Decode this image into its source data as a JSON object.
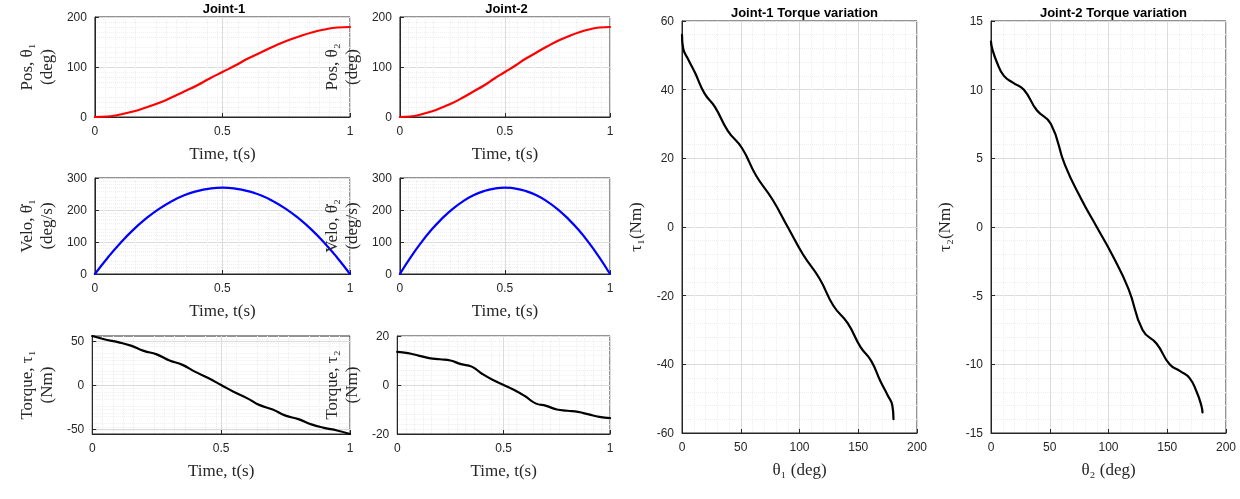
{
  "chart_data": [
    {
      "type": "line",
      "title": "Joint-1",
      "xlabel": "Time, t(s)",
      "ylabel": "Pos, θ₁\n(deg)",
      "x": [
        0,
        0.05,
        0.1,
        0.15,
        0.2,
        0.25,
        0.3,
        0.35,
        0.4,
        0.45,
        0.5,
        0.55,
        0.6,
        0.65,
        0.7,
        0.75,
        0.8,
        0.85,
        0.9,
        0.95,
        1
      ],
      "series": [
        {
          "color": "#ff0000",
          "values": [
            0,
            1,
            5,
            11,
            19,
            28,
            39,
            51,
            63,
            77,
            90,
            103,
            117,
            129,
            141,
            152,
            161,
            169,
            175,
            179,
            180
          ]
        }
      ],
      "xlim": [
        0,
        1
      ],
      "xticks": [
        0,
        0.5,
        1
      ],
      "ylim": [
        0,
        200
      ],
      "yticks": [
        0,
        100,
        200
      ],
      "grid": true
    },
    {
      "type": "line",
      "title": "Joint-2",
      "xlabel": "Time, t(s)",
      "ylabel": "Pos, θ₂\n(deg)",
      "x": [
        0,
        0.05,
        0.1,
        0.15,
        0.2,
        0.25,
        0.3,
        0.35,
        0.4,
        0.45,
        0.5,
        0.55,
        0.6,
        0.65,
        0.7,
        0.75,
        0.8,
        0.85,
        0.9,
        0.95,
        1
      ],
      "series": [
        {
          "color": "#ff0000",
          "values": [
            0,
            1,
            5,
            11,
            19,
            28,
            39,
            51,
            63,
            77,
            90,
            103,
            117,
            129,
            141,
            152,
            161,
            169,
            175,
            179,
            180
          ]
        }
      ],
      "xlim": [
        0,
        1
      ],
      "xticks": [
        0,
        0.5,
        1
      ],
      "ylim": [
        0,
        200
      ],
      "yticks": [
        0,
        100,
        200
      ],
      "grid": true
    },
    {
      "type": "line",
      "xlabel": "Time, t(s)",
      "ylabel": "Velo, θ̇₁\n(deg/s)",
      "x": [
        0,
        0.05,
        0.1,
        0.15,
        0.2,
        0.25,
        0.3,
        0.35,
        0.4,
        0.45,
        0.5,
        0.55,
        0.6,
        0.65,
        0.7,
        0.75,
        0.8,
        0.85,
        0.9,
        0.95,
        1
      ],
      "series": [
        {
          "color": "#0000ff",
          "values": [
            0,
            51,
            97,
            138,
            173,
            203,
            227,
            246,
            259,
            267,
            270,
            267,
            259,
            246,
            227,
            203,
            173,
            138,
            97,
            51,
            0
          ]
        }
      ],
      "xlim": [
        0,
        1
      ],
      "xticks": [
        0,
        0.5,
        1
      ],
      "ylim": [
        0,
        300
      ],
      "yticks": [
        0,
        100,
        200,
        300
      ],
      "grid": true
    },
    {
      "type": "line",
      "xlabel": "Time, t(s)",
      "ylabel": "Velo, θ̇₂\n(deg/s)",
      "x": [
        0,
        0.05,
        0.1,
        0.15,
        0.2,
        0.25,
        0.3,
        0.35,
        0.4,
        0.45,
        0.5,
        0.55,
        0.6,
        0.65,
        0.7,
        0.75,
        0.8,
        0.85,
        0.9,
        0.95,
        1
      ],
      "series": [
        {
          "color": "#0000ff",
          "values": [
            0,
            51,
            97,
            138,
            173,
            203,
            227,
            246,
            259,
            267,
            270,
            267,
            259,
            246,
            227,
            203,
            173,
            138,
            97,
            51,
            0
          ]
        }
      ],
      "xlim": [
        0,
        1
      ],
      "xticks": [
        0,
        0.5,
        1
      ],
      "ylim": [
        0,
        300
      ],
      "yticks": [
        0,
        100,
        200,
        300
      ],
      "grid": true
    },
    {
      "type": "line",
      "xlabel": "Time, t(s)",
      "ylabel": "Torque, τ₁\n(Nm)",
      "x": [
        0,
        0.05,
        0.1,
        0.15,
        0.2,
        0.25,
        0.3,
        0.35,
        0.4,
        0.45,
        0.5,
        0.55,
        0.6,
        0.65,
        0.7,
        0.75,
        0.8,
        0.85,
        0.9,
        0.95,
        1
      ],
      "series": [
        {
          "color": "#000000",
          "values": [
            56,
            52,
            49,
            45,
            39,
            35,
            28,
            23,
            15,
            8,
            0,
            -8,
            -15,
            -23,
            -28,
            -35,
            -39,
            -45,
            -49,
            -52,
            -56
          ]
        }
      ],
      "xlim": [
        0,
        1
      ],
      "xticks": [
        0,
        0.5,
        1
      ],
      "ylim": [
        -56,
        56
      ],
      "yticks": [
        -50,
        0,
        50
      ],
      "grid": true
    },
    {
      "type": "line",
      "xlabel": "Time, t(s)",
      "ylabel": "Torque, τ₂\n(Nm)",
      "x": [
        0,
        0.05,
        0.1,
        0.15,
        0.2,
        0.25,
        0.3,
        0.35,
        0.4,
        0.45,
        0.5,
        0.55,
        0.6,
        0.65,
        0.7,
        0.75,
        0.8,
        0.85,
        0.9,
        0.95,
        1
      ],
      "series": [
        {
          "color": "#000000",
          "values": [
            13.5,
            13,
            12,
            11,
            10.5,
            10,
            8.5,
            7.5,
            4.5,
            2,
            0,
            -2,
            -4.5,
            -7.5,
            -8.5,
            -10,
            -10.5,
            -11,
            -12,
            -13,
            -13.5
          ]
        }
      ],
      "xlim": [
        0,
        1
      ],
      "xticks": [
        0,
        0.5,
        1
      ],
      "ylim": [
        -20,
        20
      ],
      "yticks": [
        -20,
        0,
        20
      ],
      "grid": true
    },
    {
      "type": "line",
      "title": "Joint-1 Torque variation",
      "xlabel": "θ₁ (deg)",
      "ylabel": "τ₁(Nm)",
      "x": [
        0,
        1,
        5,
        11,
        19,
        28,
        39,
        51,
        63,
        77,
        90,
        103,
        117,
        129,
        141,
        152,
        161,
        169,
        175,
        179,
        180
      ],
      "series": [
        {
          "color": "#000000",
          "values": [
            56,
            52,
            49,
            45,
            39,
            35,
            28,
            23,
            15,
            8,
            0,
            -8,
            -15,
            -23,
            -28,
            -35,
            -39,
            -45,
            -49,
            -52,
            -56
          ]
        }
      ],
      "xlim": [
        0,
        200
      ],
      "xticks": [
        0,
        50,
        100,
        150,
        200
      ],
      "ylim": [
        -60,
        60
      ],
      "yticks": [
        -60,
        -40,
        -20,
        0,
        20,
        40,
        60
      ],
      "grid": true
    },
    {
      "type": "line",
      "title": "Joint-2 Torque variation",
      "xlabel": "θ₂ (deg)",
      "ylabel": "τ₂(Nm)",
      "x": [
        0,
        1,
        5,
        11,
        19,
        28,
        39,
        51,
        63,
        77,
        90,
        103,
        117,
        129,
        141,
        152,
        161,
        169,
        175,
        179,
        180
      ],
      "series": [
        {
          "color": "#000000",
          "values": [
            13.5,
            13,
            12,
            11,
            10.5,
            10,
            8.5,
            7.5,
            4.5,
            2,
            0,
            -2,
            -4.5,
            -7.5,
            -8.5,
            -10,
            -10.5,
            -11,
            -12,
            -13,
            -13.5
          ]
        }
      ],
      "xlim": [
        0,
        200
      ],
      "xticks": [
        0,
        50,
        100,
        150,
        200
      ],
      "ylim": [
        -15,
        15
      ],
      "yticks": [
        -15,
        -10,
        -5,
        0,
        5,
        10,
        15
      ],
      "grid": true
    }
  ]
}
